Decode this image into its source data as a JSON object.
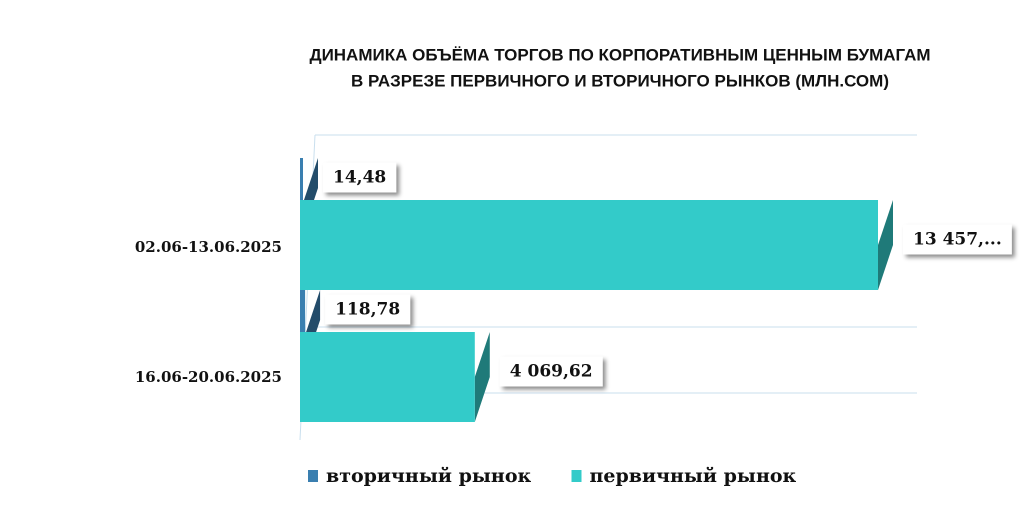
{
  "chart_data": {
    "type": "bar3d",
    "title": "ДИНАМИКА ОБЪЁМА ТОРГОВ ПО КОРПОРАТИВНЫМ ЦЕННЫМ БУМАГАМ",
    "subtitle": "В РАЗРЕЗЕ ПЕРВИЧНОГО И ВТОРИЧНОГО РЫНКОВ  (МЛН.СОМ)",
    "categories": [
      "02.06-13.06.2025",
      "16.06-20.06.2025"
    ],
    "series": [
      {
        "name": "вторичный рынок",
        "color": "#3a7fb0",
        "values": [
          14.48,
          118.78
        ],
        "value_labels": [
          "14,48",
          "118,78"
        ]
      },
      {
        "name": "первичный рынок",
        "color": "#33cbc9",
        "values": [
          13457,
          4069.62
        ],
        "value_labels": [
          "13 457,...",
          "4 069,62"
        ]
      }
    ],
    "legend": "bottom"
  }
}
